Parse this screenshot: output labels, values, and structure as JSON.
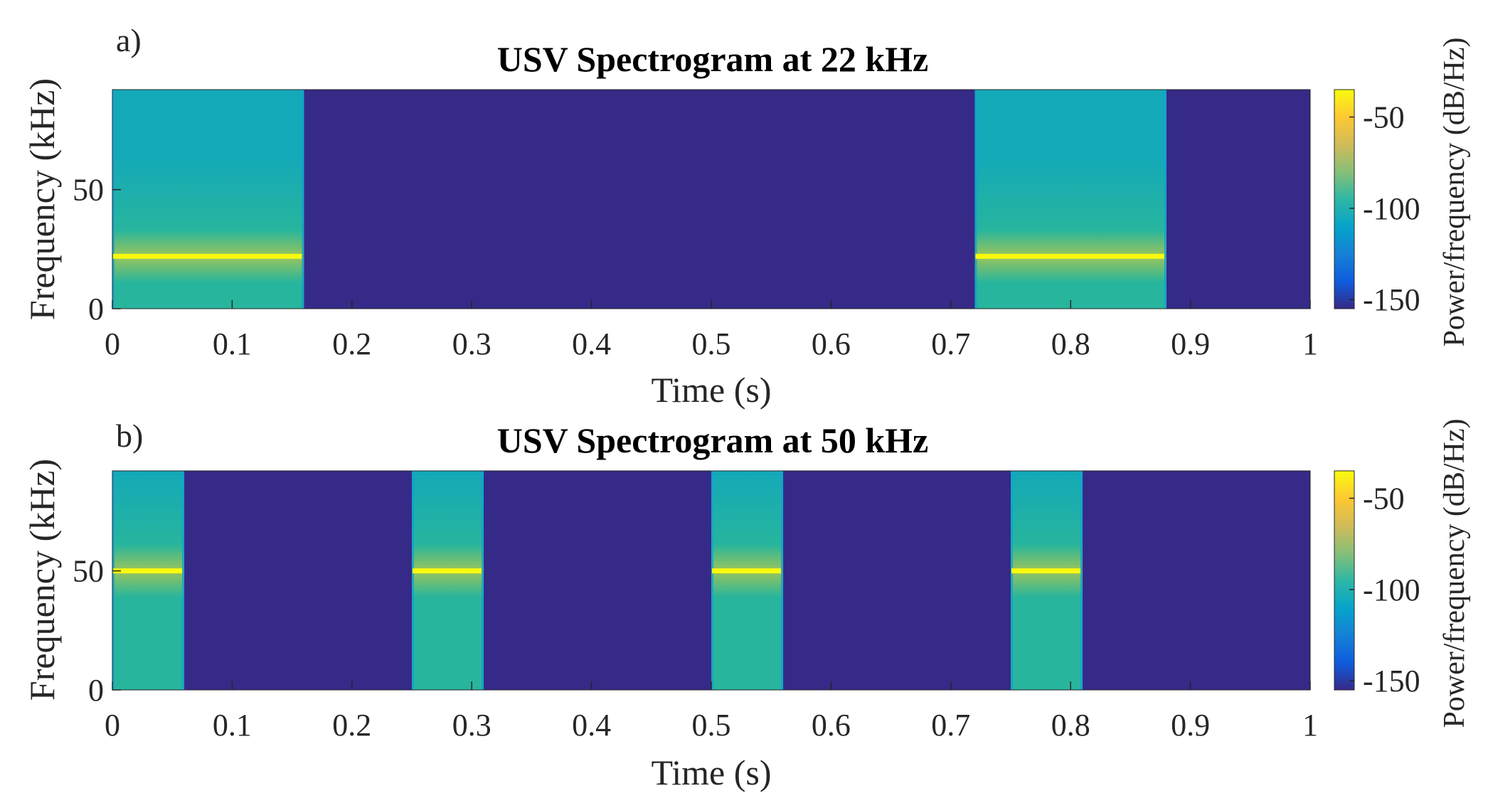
{
  "chart_data": [
    {
      "type": "heatmap",
      "panel_label": "a)",
      "title": "USV Spectrogram at 22 kHz",
      "xlabel": "Time (s)",
      "ylabel": "Frequency (kHz)",
      "xlim": [
        0,
        1
      ],
      "ylim": [
        0,
        92
      ],
      "xticks": [
        0,
        0.1,
        0.2,
        0.3,
        0.4,
        0.5,
        0.6,
        0.7,
        0.8,
        0.9,
        1
      ],
      "xtick_labels": [
        "0",
        "0.1",
        "0.2",
        "0.3",
        "0.4",
        "0.5",
        "0.6",
        "0.7",
        "0.8",
        "0.9",
        "1"
      ],
      "yticks": [
        0,
        50
      ],
      "ytick_labels": [
        "0",
        "50"
      ],
      "tone_frequency_khz": 22,
      "pulses": [
        {
          "start": 0.0,
          "end": 0.16
        },
        {
          "start": 0.72,
          "end": 0.88
        }
      ],
      "background_level_db": -150,
      "colorbar": {
        "label": "Power/frequency (dB/Hz)",
        "ticks": [
          -50,
          -100,
          -150
        ],
        "tick_labels": [
          "-50",
          "-100",
          "-150"
        ],
        "range": [
          -155,
          -35
        ]
      }
    },
    {
      "type": "heatmap",
      "panel_label": "b)",
      "title": "USV Spectrogram at 50 kHz",
      "xlabel": "Time (s)",
      "ylabel": "Frequency (kHz)",
      "xlim": [
        0,
        1
      ],
      "ylim": [
        0,
        92
      ],
      "xticks": [
        0,
        0.1,
        0.2,
        0.3,
        0.4,
        0.5,
        0.6,
        0.7,
        0.8,
        0.9,
        1
      ],
      "xtick_labels": [
        "0",
        "0.1",
        "0.2",
        "0.3",
        "0.4",
        "0.5",
        "0.6",
        "0.7",
        "0.8",
        "0.9",
        "1"
      ],
      "yticks": [
        0,
        50
      ],
      "ytick_labels": [
        "0",
        "50"
      ],
      "tone_frequency_khz": 50,
      "pulses": [
        {
          "start": 0.0,
          "end": 0.06
        },
        {
          "start": 0.25,
          "end": 0.31
        },
        {
          "start": 0.5,
          "end": 0.56
        },
        {
          "start": 0.75,
          "end": 0.81
        }
      ],
      "background_level_db": -150,
      "colorbar": {
        "label": "Power/frequency (dB/Hz)",
        "ticks": [
          -50,
          -100,
          -150
        ],
        "tick_labels": [
          "-50",
          "-100",
          "-150"
        ],
        "range": [
          -155,
          -35
        ]
      }
    }
  ],
  "colors": {
    "background": "#352a87",
    "tone": "#f9fb0e",
    "pulse_top": "#14a9b8",
    "pulse_mid": "#27b59d",
    "pulse_near_tone": "#9bc45a",
    "colormap": [
      "#352a87",
      "#0f5cdd",
      "#1481d6",
      "#06a4ca",
      "#2eb7a4",
      "#87bf77",
      "#d1bb59",
      "#fec832",
      "#f9fb0e"
    ]
  }
}
